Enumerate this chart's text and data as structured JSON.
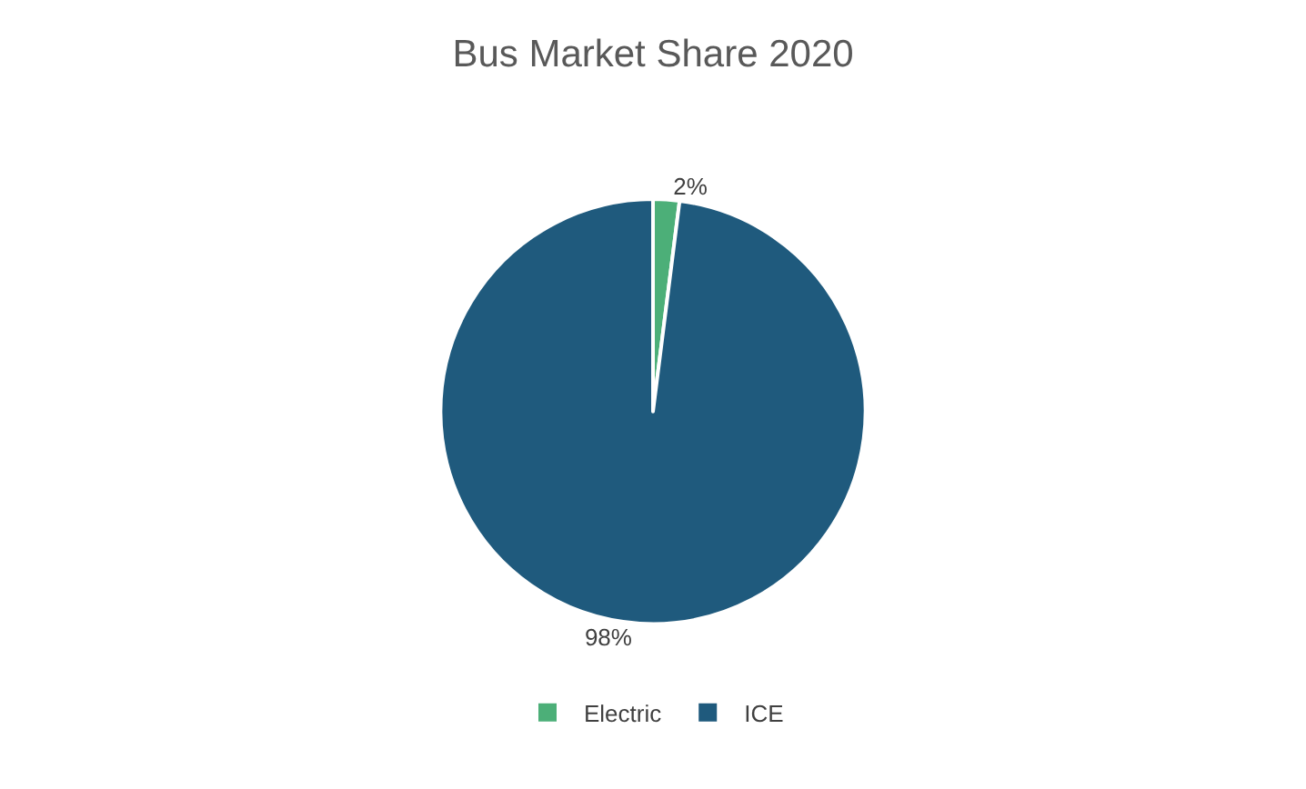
{
  "chart_data": {
    "type": "pie",
    "title": "Bus Market Share 2020",
    "categories": [
      "Electric",
      "ICE"
    ],
    "values": [
      2,
      98
    ],
    "colors": [
      "#4caf78",
      "#1f5a7d"
    ],
    "value_labels": [
      "2%",
      "98%"
    ],
    "legend": "bottom"
  }
}
